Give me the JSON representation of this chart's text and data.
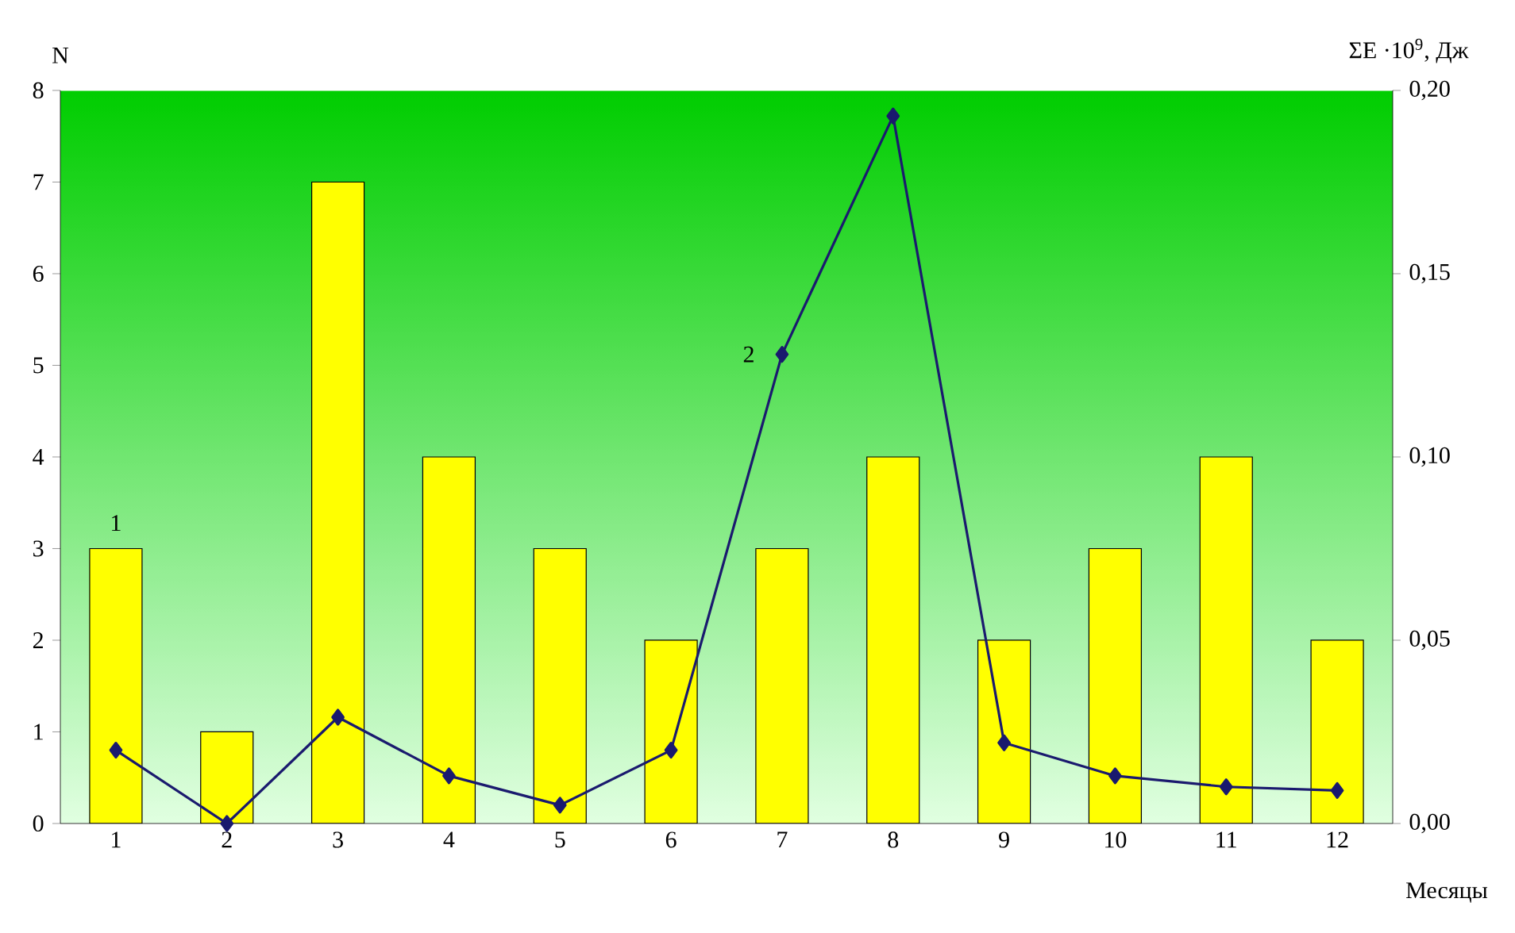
{
  "chart_data": {
    "type": "bar",
    "ylabel": "N",
    "y2label": "ΣE ·10$^{9}$, Дж",
    "xlabel": "Месяцы",
    "categories": [
      "1",
      "2",
      "3",
      "4",
      "5",
      "6",
      "7",
      "8",
      "9",
      "10",
      "11",
      "12"
    ],
    "series": [
      {
        "name": "1",
        "color": "#ffff00",
        "values": [
          3,
          1,
          7,
          4,
          3,
          2,
          3,
          4,
          2,
          3,
          4,
          2
        ]
      },
      {
        "name": "2",
        "type": "line",
        "axis": "y2",
        "color": "#1a1a6e",
        "values": [
          0.02,
          0.0,
          0.029,
          0.013,
          0.005,
          0.02,
          0.128,
          0.193,
          0.022,
          0.013,
          0.01,
          0.009
        ]
      }
    ],
    "ylim": [
      0,
      8
    ],
    "yticks": [
      0,
      1,
      2,
      3,
      4,
      5,
      6,
      7,
      8
    ],
    "y2lim": [
      0,
      0.2
    ],
    "y2ticks": [
      {
        "value": 0,
        "label": "0,00"
      },
      {
        "value": 0.05,
        "label": "0,05"
      },
      {
        "value": 0.1,
        "label": "0,10"
      },
      {
        "value": 0.15,
        "label": "0,15"
      },
      {
        "value": 0.2,
        "label": "0,20"
      }
    ],
    "marker": "diamond",
    "line_style": "solid"
  }
}
